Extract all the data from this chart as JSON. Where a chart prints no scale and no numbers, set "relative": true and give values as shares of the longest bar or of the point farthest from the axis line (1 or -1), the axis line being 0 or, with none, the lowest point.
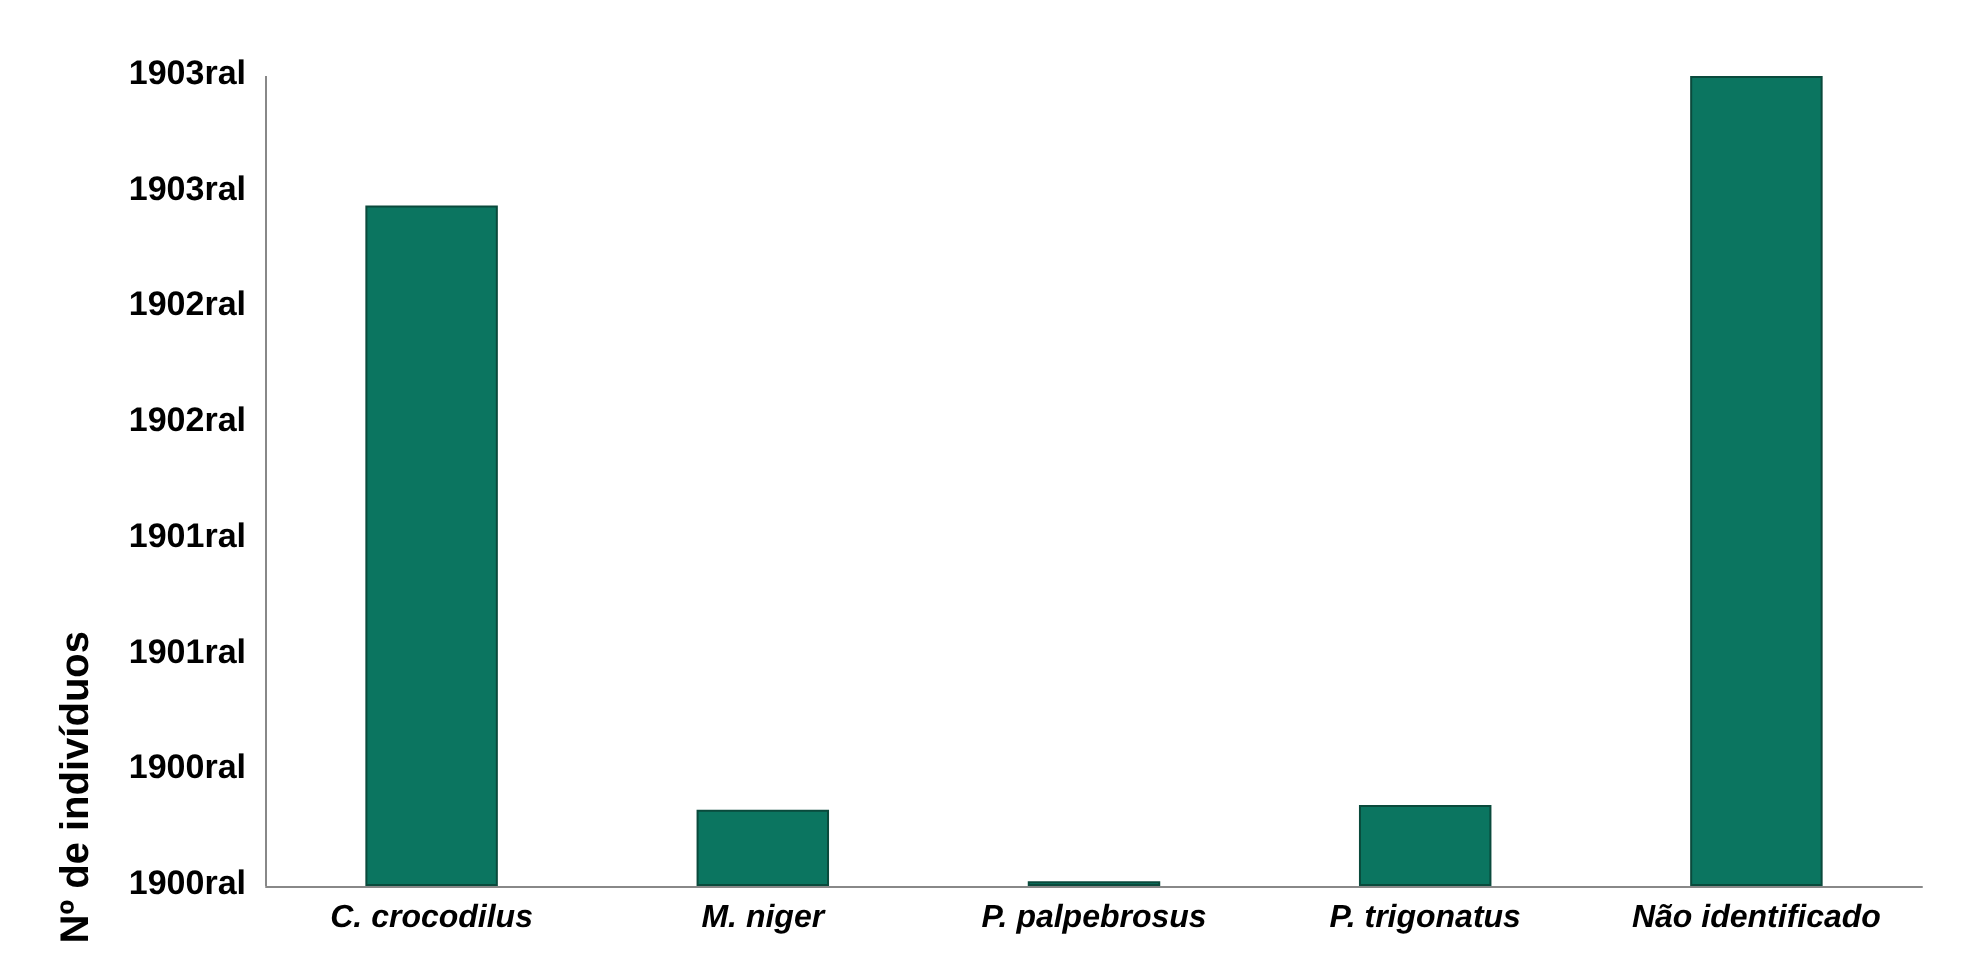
{
  "chart_data": {
    "type": "bar",
    "ylabel": "Nº de indivíduos",
    "relative": true,
    "categories": [
      "C. crocodilus",
      "M. niger",
      "P. palpebrosus",
      "P. trigonatus",
      "Não identificado"
    ],
    "values": [
      0.84,
      0.094,
      0.006,
      0.1,
      1
    ],
    "color": "#0b7560",
    "annotations": [
      "1903ral",
      "1903ral",
      "1902ral",
      "1902ral",
      "1901ral",
      "1901ral",
      "1900ral",
      "1900ral"
    ],
    "grid": false
  }
}
